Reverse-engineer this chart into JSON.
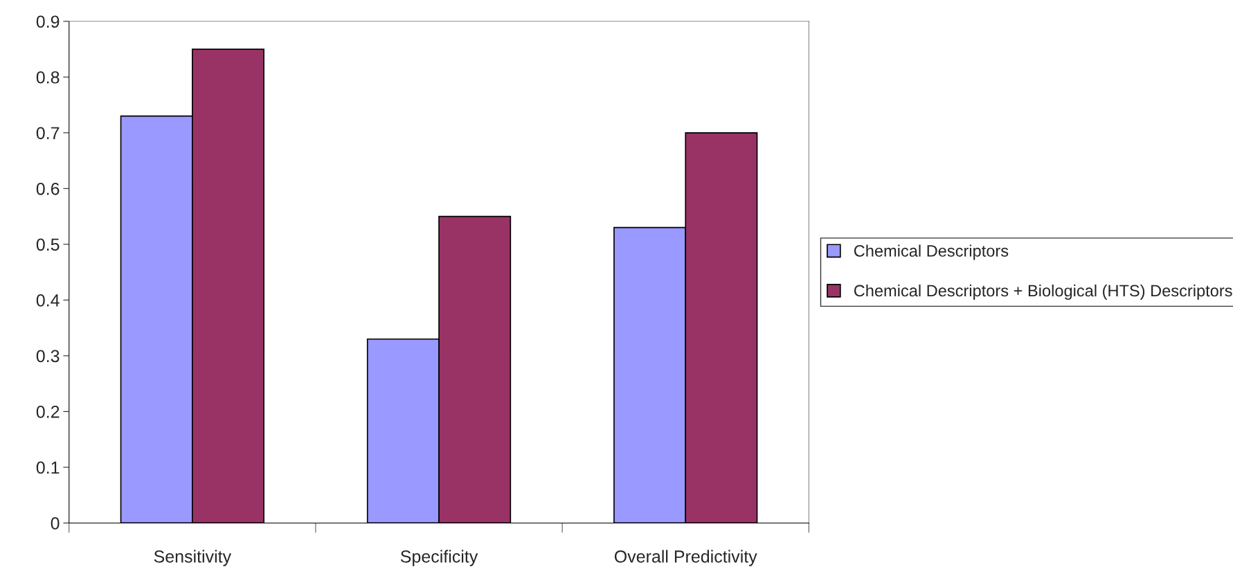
{
  "chart_data": {
    "type": "bar",
    "categories": [
      "Sensitivity",
      "Specificity",
      "Overall Predictivity"
    ],
    "series": [
      {
        "name": "Chemical Descriptors",
        "color": "#9999ff",
        "values": [
          0.73,
          0.33,
          0.53
        ]
      },
      {
        "name": "Chemical Descriptors + Biological (HTS) Descriptors",
        "color": "#993366",
        "values": [
          0.85,
          0.55,
          0.7
        ]
      }
    ],
    "ylim": [
      0,
      0.9
    ],
    "yticks": [
      0,
      0.1,
      0.2,
      0.3,
      0.4,
      0.5,
      0.6,
      0.7,
      0.8,
      0.9
    ],
    "grid": false,
    "legend": "right"
  }
}
